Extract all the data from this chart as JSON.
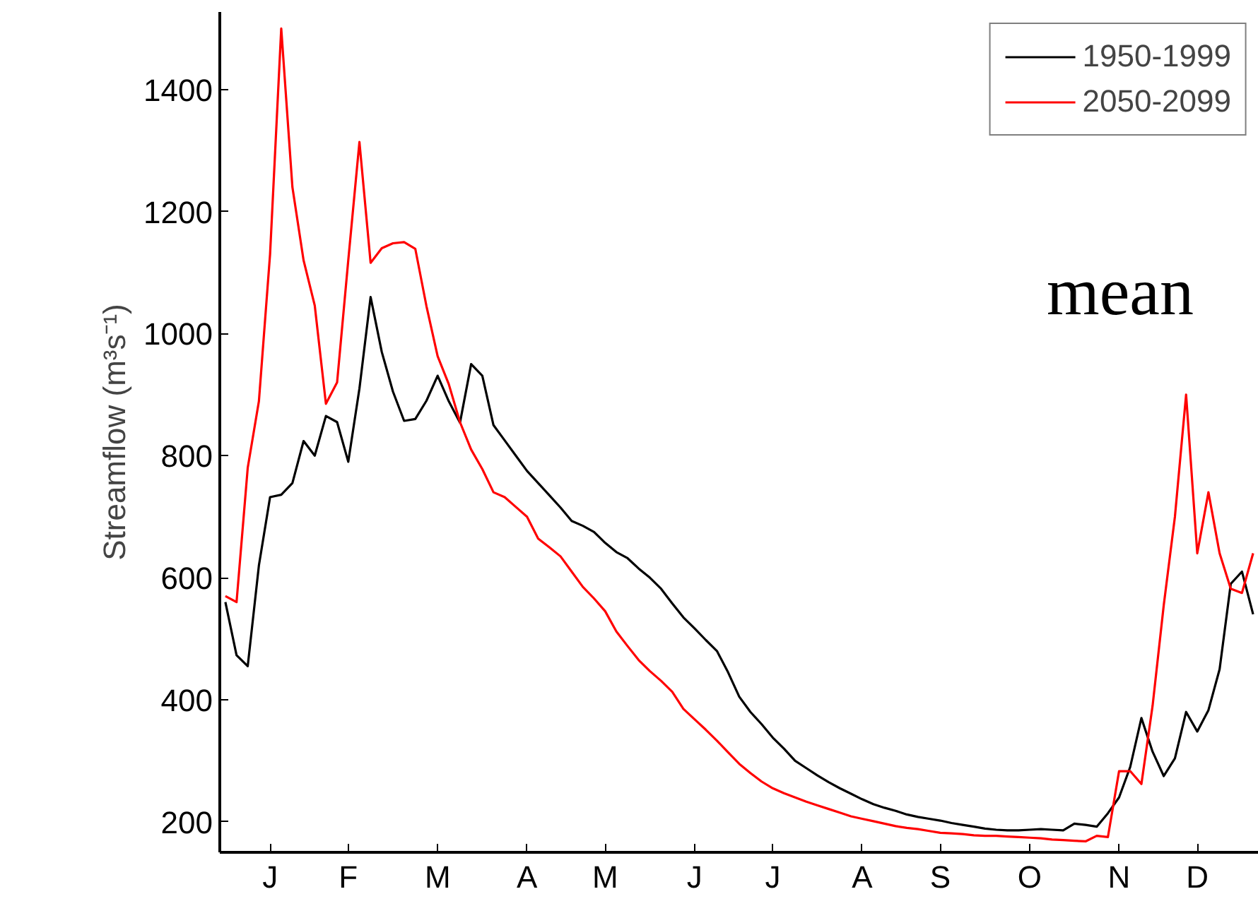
{
  "chart_data": {
    "type": "line",
    "ylabel": "Streamflow (m³s⁻¹)",
    "annotations": [
      "mean"
    ],
    "categories": [
      null,
      null,
      null,
      null,
      "J",
      null,
      null,
      null,
      null,
      null,
      null,
      "F",
      null,
      null,
      null,
      null,
      null,
      null,
      null,
      "M",
      null,
      null,
      null,
      null,
      null,
      null,
      null,
      "A",
      null,
      null,
      null,
      null,
      null,
      null,
      "M",
      null,
      null,
      null,
      null,
      null,
      null,
      null,
      "J",
      null,
      null,
      null,
      null,
      null,
      null,
      "J",
      null,
      null,
      null,
      null,
      null,
      null,
      null,
      "A",
      null,
      null,
      null,
      null,
      null,
      null,
      "S",
      null,
      null,
      null,
      null,
      null,
      null,
      null,
      "O",
      null,
      null,
      null,
      null,
      null,
      null,
      null,
      "N",
      null,
      null,
      null,
      null,
      null,
      null,
      "D",
      null,
      null,
      null,
      null,
      null
    ],
    "ylim": [
      150,
      1527
    ],
    "yticks": [
      200,
      400,
      600,
      800,
      1000,
      1200,
      1400
    ],
    "grid": false,
    "legend": "top right",
    "series": [
      {
        "name": "1950-1999",
        "color": "#000000",
        "values": [
          560,
          473,
          455,
          620,
          732,
          736,
          755,
          824,
          800,
          865,
          855,
          790,
          910,
          1060,
          970,
          905,
          857,
          860,
          890,
          931,
          889,
          854,
          950,
          931,
          850,
          825,
          800,
          775,
          755,
          735,
          715,
          693,
          685,
          675,
          657,
          642,
          632,
          615,
          600,
          582,
          558,
          535,
          517,
          498,
          480,
          445,
          405,
          380,
          360,
          338,
          320,
          300,
          288,
          276,
          265,
          255,
          246,
          237,
          229,
          223,
          218,
          212,
          208,
          205,
          202,
          198,
          195,
          192,
          189,
          187,
          186,
          186,
          187,
          188,
          187,
          186,
          197,
          195,
          192,
          214,
          240,
          290,
          370,
          315,
          275,
          304,
          380,
          348,
          383,
          450,
          590,
          610,
          540
        ]
      },
      {
        "name": "2050-2099",
        "color": "#ff0000",
        "values": [
          570,
          560,
          780,
          889,
          1130,
          1500,
          1240,
          1120,
          1046,
          885,
          920,
          1120,
          1314,
          1116,
          1140,
          1148,
          1150,
          1139,
          1045,
          963,
          917,
          855,
          810,
          778,
          740,
          732,
          716,
          700,
          664,
          650,
          635,
          610,
          585,
          566,
          545,
          512,
          488,
          465,
          447,
          431,
          413,
          385,
          368,
          351,
          333,
          314,
          295,
          280,
          266,
          255,
          247,
          240,
          233,
          227,
          221,
          215,
          209,
          205,
          201,
          197,
          193,
          190,
          188,
          185,
          182,
          181,
          180,
          178,
          177,
          177,
          176,
          175,
          174,
          173,
          171,
          170,
          169,
          168,
          177,
          175,
          283,
          283,
          262,
          390,
          555,
          700,
          900,
          640,
          740,
          640,
          582,
          575,
          640
        ]
      }
    ]
  }
}
